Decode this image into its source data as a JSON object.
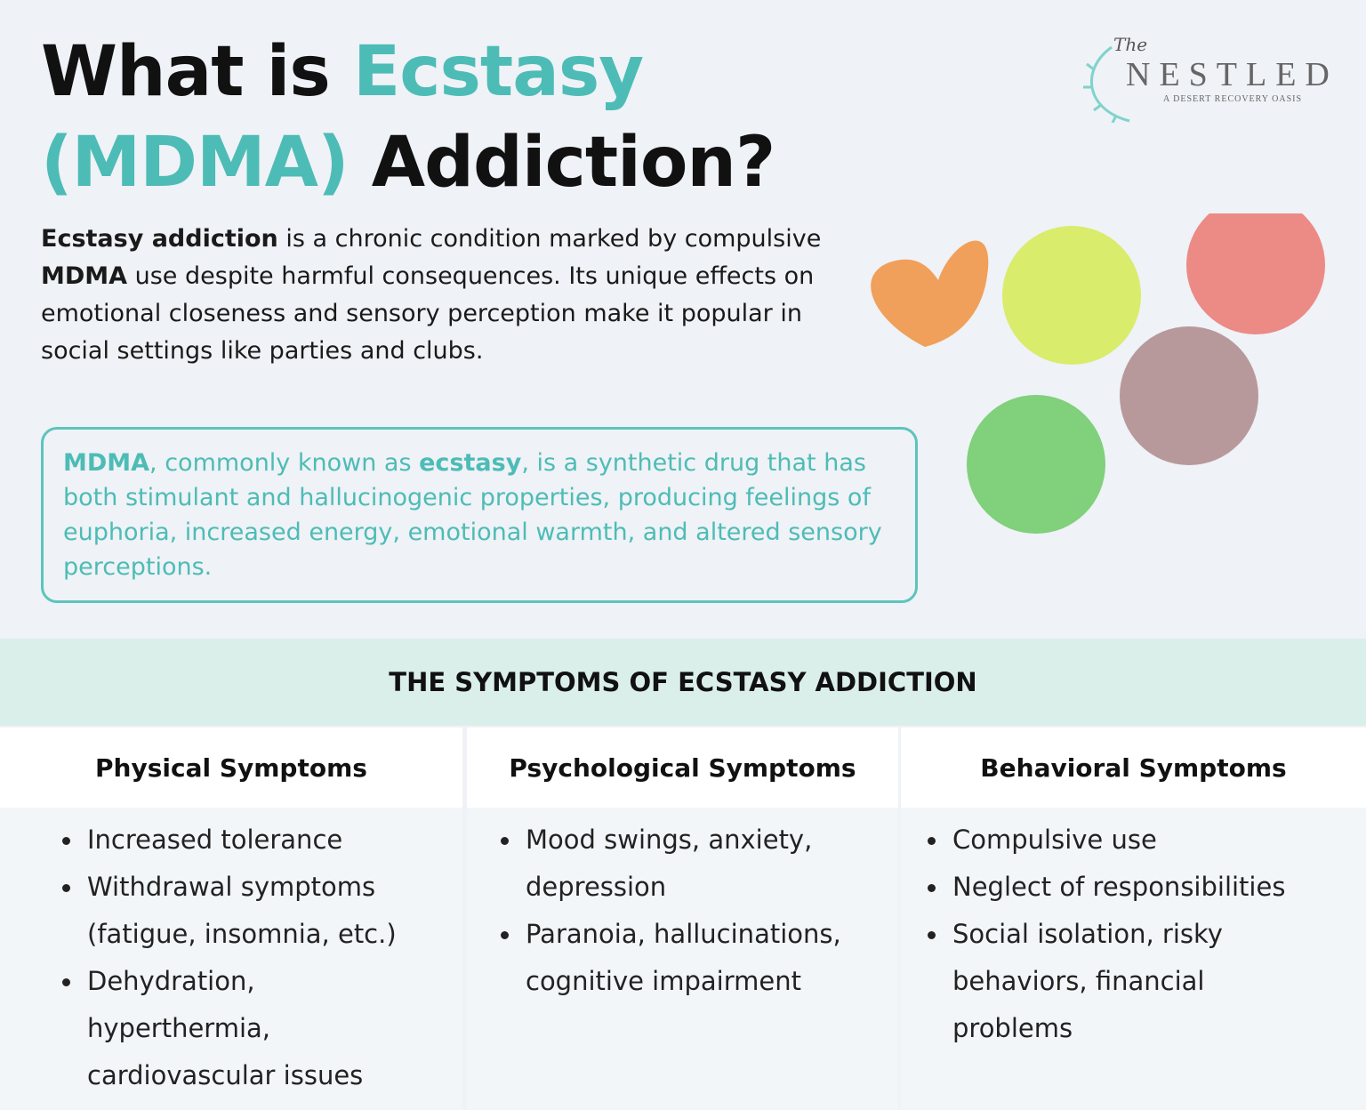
{
  "title": {
    "part1": "What is ",
    "part2": "Ecstasy",
    "part3": "(MDMA)",
    "part4": " Addiction?"
  },
  "logo": {
    "the": "The",
    "name": "NESTLED",
    "tagline": "A DESERT RECOVERY OASIS"
  },
  "intro": {
    "b1": "Ecstasy addiction",
    "t1": " is a chronic condition marked by compulsive ",
    "b2": "MDMA",
    "t2": " use despite harmful consequences. Its unique effects on emotional closeness and sensory perception make it popular in social settings like parties and clubs."
  },
  "definition": {
    "b1": "MDMA",
    "t1": ", commonly known as ",
    "b2": "ecstasy",
    "t2": ", is a synthetic drug that has both stimulant and hallucinogenic properties, producing feelings of euphoria, increased energy, emotional warmth, and altered sensory perceptions."
  },
  "section_title": "THE SYMPTOMS OF ECSTASY ADDICTION",
  "columns": [
    {
      "title": "Physical Symptoms",
      "items": [
        "Increased tolerance",
        "Withdrawal symptoms (fatigue, insomnia, etc.)",
        "Dehydration, hyperthermia, cardiovascular issues"
      ]
    },
    {
      "title": "Psychological Symptoms",
      "items": [
        "Mood swings, anxiety, depression",
        "Paranoia, hallucinations, cognitive impairment"
      ]
    },
    {
      "title": "Behavioral Symptoms",
      "items": [
        "Compulsive use",
        "Neglect of responsibilities",
        "Social isolation, risky behaviors, financial problems"
      ]
    }
  ],
  "colors": {
    "accent": "#4dbcb6",
    "band": "#dbefea",
    "background": "#eff2f6"
  }
}
